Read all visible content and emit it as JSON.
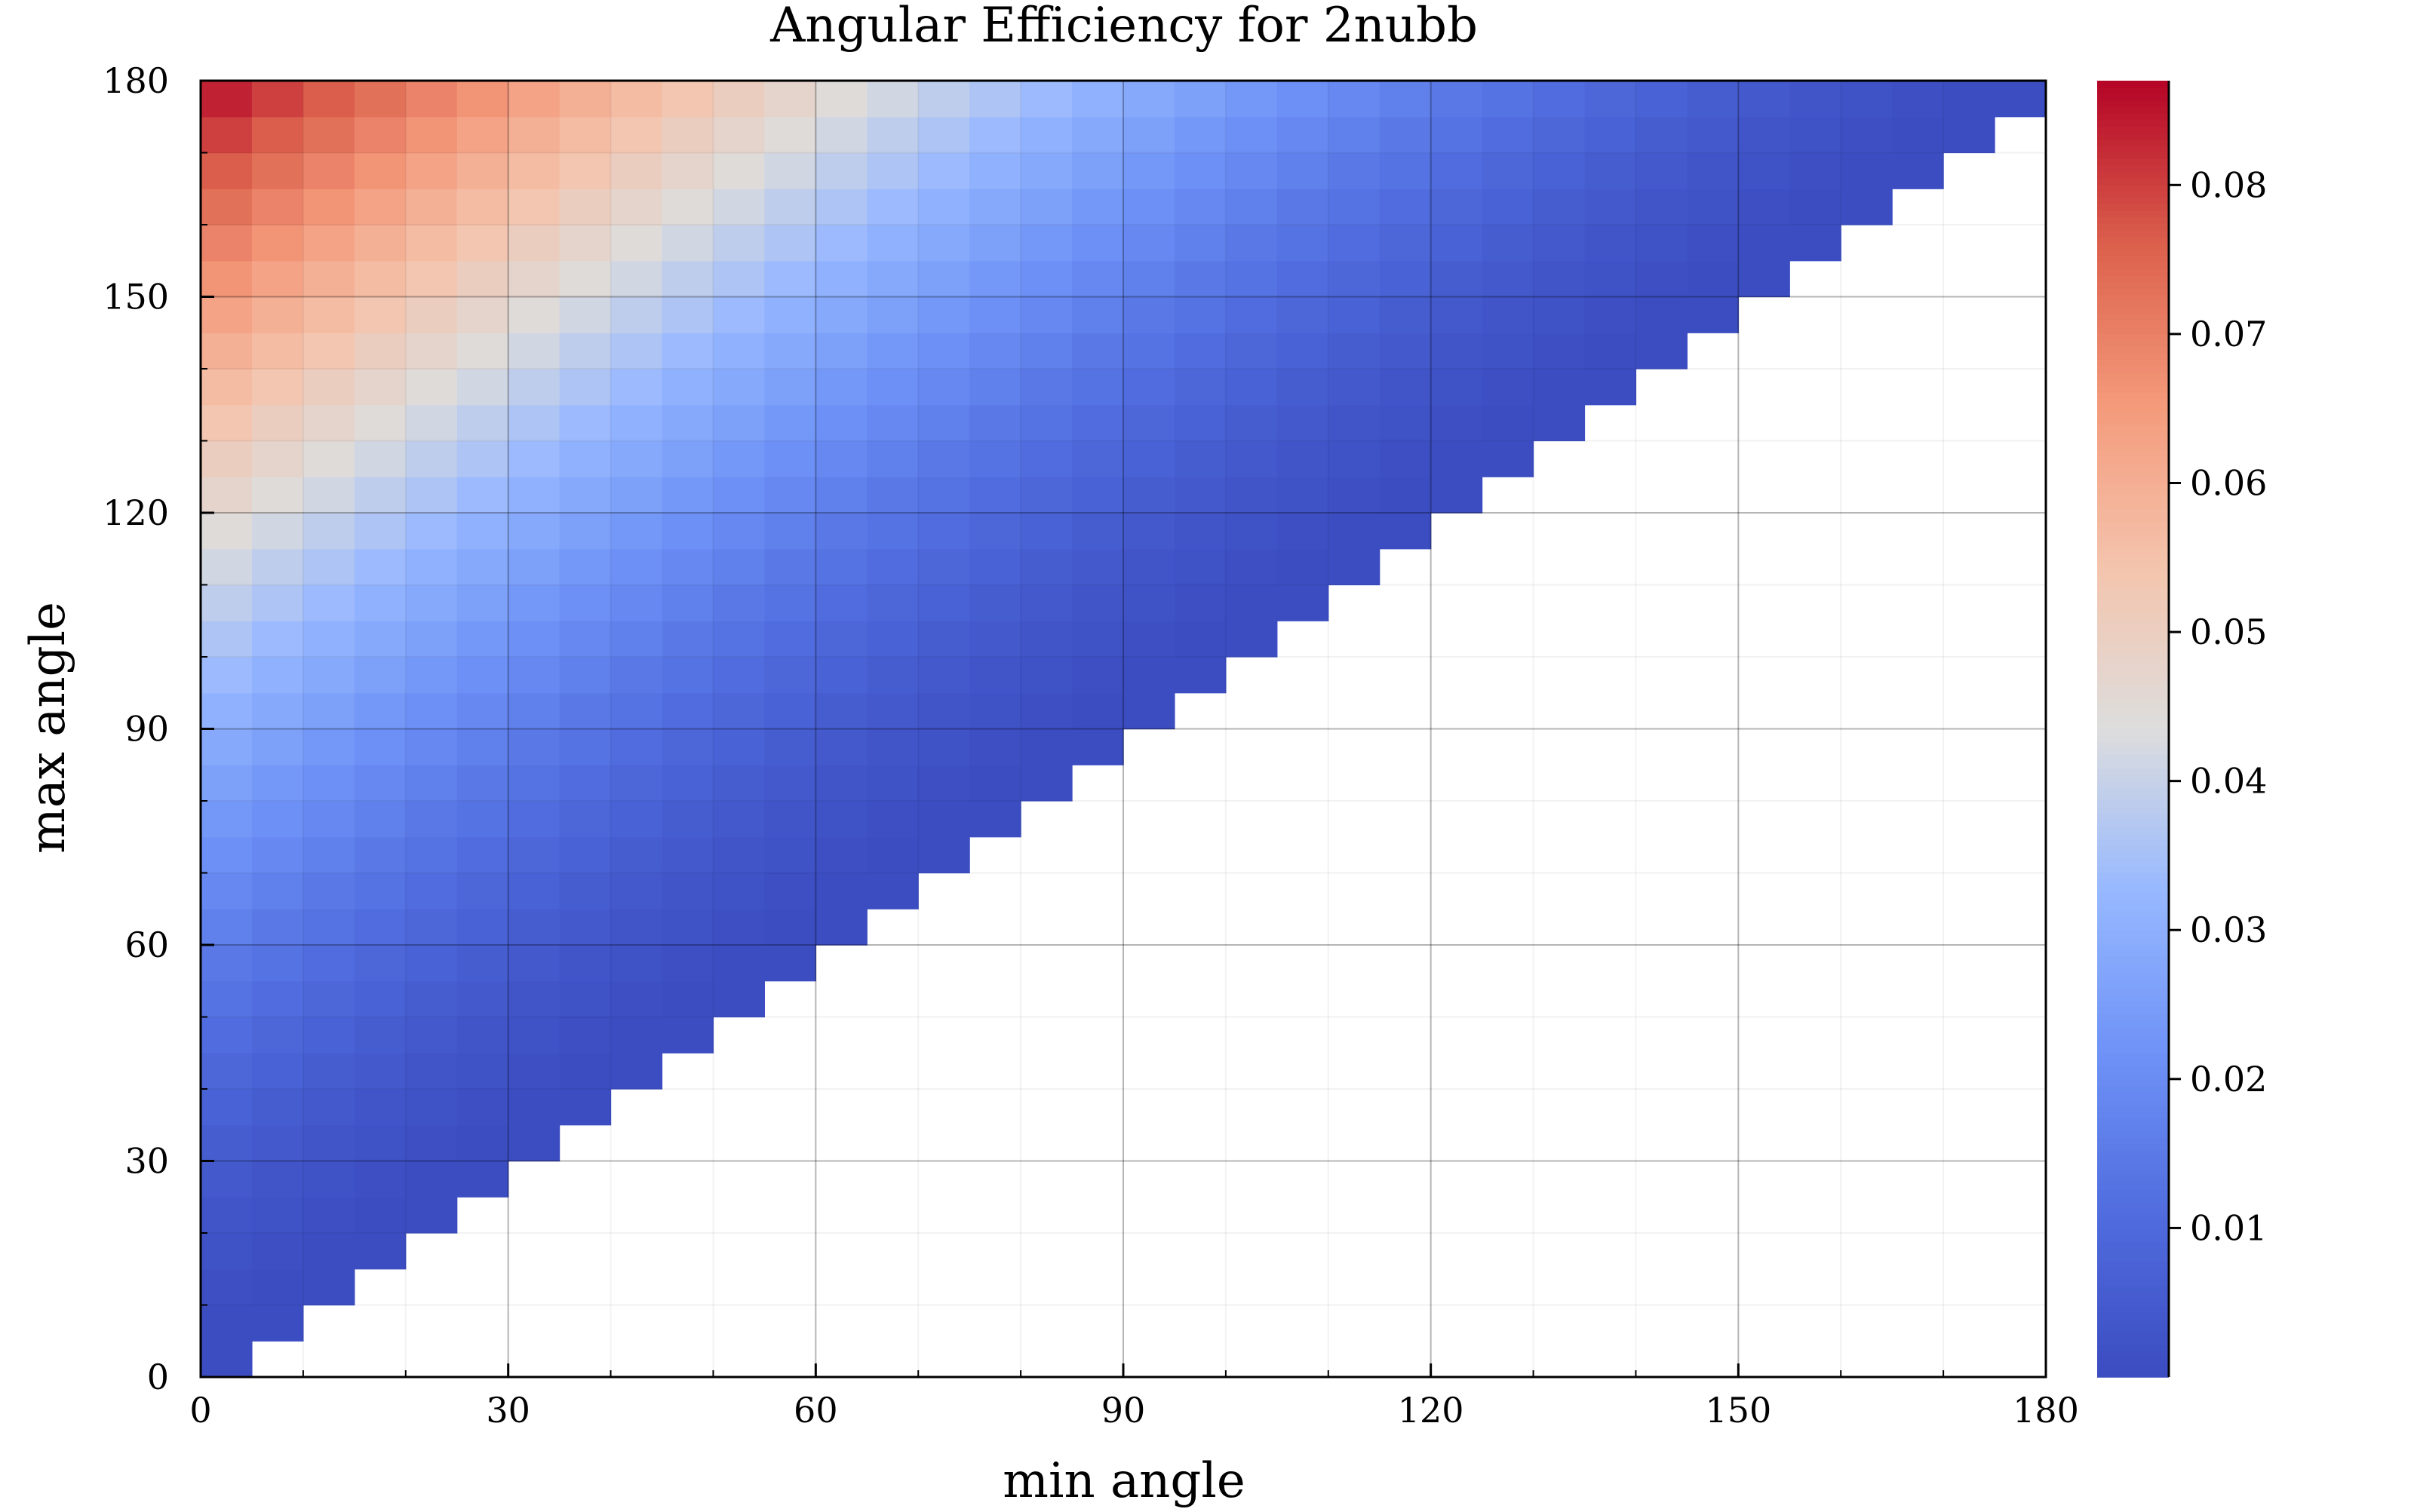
{
  "chart_data": {
    "type": "heatmap",
    "title": "Angular Efficiency for 2nubb",
    "xlabel": "min angle",
    "ylabel": "max angle",
    "xlim": [
      0,
      180
    ],
    "ylim": [
      0,
      180
    ],
    "xticks": [
      "0",
      "30",
      "60",
      "90",
      "120",
      "150",
      "180"
    ],
    "yticks": [
      "0",
      "30",
      "60",
      "90",
      "120",
      "150",
      "180"
    ],
    "bin_width_deg": 5,
    "bin_height_deg": 5,
    "region": "cells exist where max angle bin index >= min angle bin index (max >= min)",
    "value_model": "value(min, max) = 0.087 * ((max - min) / 180) ^ 1.5",
    "value_range": [
      0.0,
      0.087
    ],
    "colormap": "coolwarm",
    "colorbar": {
      "range": [
        0.0,
        0.087
      ],
      "ticks": [
        "0.01",
        "0.02",
        "0.03",
        "0.04",
        "0.05",
        "0.06",
        "0.07",
        "0.08"
      ],
      "tick_values": [
        0.01,
        0.02,
        0.03,
        0.04,
        0.05,
        0.06,
        0.07,
        0.08
      ]
    },
    "grid": true,
    "colors": {
      "low": "#3b4cc0",
      "mid": "#dddddd",
      "high": "#b40426"
    }
  }
}
